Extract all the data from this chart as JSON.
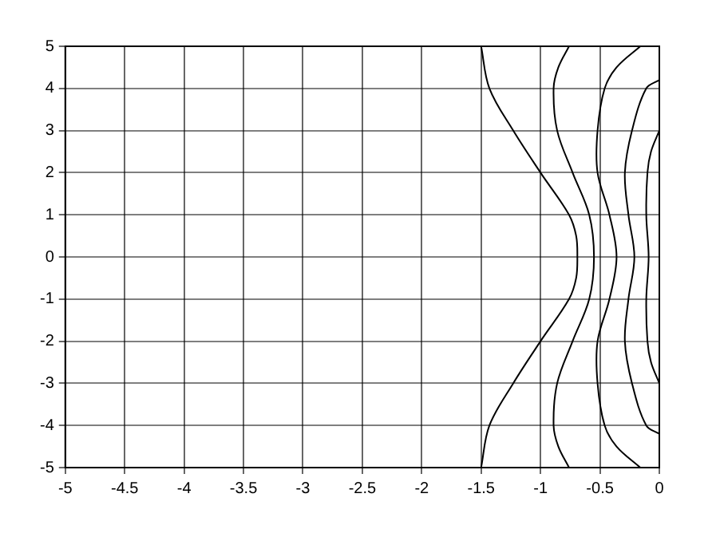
{
  "chart_data": {
    "type": "line",
    "xlim": [
      -5,
      0
    ],
    "ylim": [
      -5,
      5
    ],
    "xticks": [
      -5,
      -4.5,
      -4,
      -3.5,
      -3,
      -2.5,
      -2,
      -1.5,
      -1,
      -0.5,
      0
    ],
    "yticks": [
      -5,
      -4,
      -3,
      -2,
      -1,
      0,
      1,
      2,
      3,
      4,
      5
    ],
    "grid": true,
    "line_style": "solid",
    "marker": "none",
    "series": [
      {
        "color": "#000000",
        "x": [
          -1.5,
          -1.43,
          -1.23,
          -1.0,
          -0.76,
          -0.7,
          -0.69,
          -0.7,
          -0.76,
          -1.0,
          -1.23,
          -1.43,
          -1.5
        ],
        "values": [
          5,
          4,
          3,
          2,
          1,
          0.5,
          0,
          -0.5,
          -1,
          -2,
          -3,
          -4,
          -5
        ]
      },
      {
        "color": "#000000",
        "x": [
          -0.76,
          -0.85,
          -0.89,
          -0.86,
          -0.73,
          -0.59,
          -0.55,
          -0.59,
          -0.73,
          -0.86,
          -0.89,
          -0.85,
          -0.76
        ],
        "values": [
          5,
          4.5,
          4,
          3,
          2,
          1,
          0,
          -1,
          -2,
          -3,
          -4,
          -4.5,
          -5
        ]
      },
      {
        "color": "#000000",
        "x": [
          -0.16,
          -0.36,
          -0.46,
          -0.52,
          -0.52,
          -0.42,
          -0.36,
          -0.42,
          -0.52,
          -0.52,
          -0.46,
          -0.36,
          -0.16
        ],
        "values": [
          5,
          4.5,
          4,
          3,
          2,
          1,
          0,
          -1,
          -2,
          -3,
          -4,
          -4.5,
          -5
        ]
      },
      {
        "color": "#000000",
        "x": [
          0,
          -0.11,
          -0.23,
          -0.29,
          -0.26,
          -0.21,
          -0.26,
          -0.29,
          -0.23,
          -0.11,
          0
        ],
        "values": [
          4.2,
          4,
          3,
          2,
          1,
          0,
          -1,
          -2,
          -3,
          -4,
          -4.2
        ]
      },
      {
        "color": "#000000",
        "x": [
          0,
          -0.07,
          -0.1,
          -0.11,
          -0.09,
          -0.11,
          -0.1,
          -0.07,
          0
        ],
        "values": [
          3,
          2.5,
          2,
          1,
          0,
          -1,
          -2,
          -2.5,
          -3
        ]
      }
    ]
  }
}
